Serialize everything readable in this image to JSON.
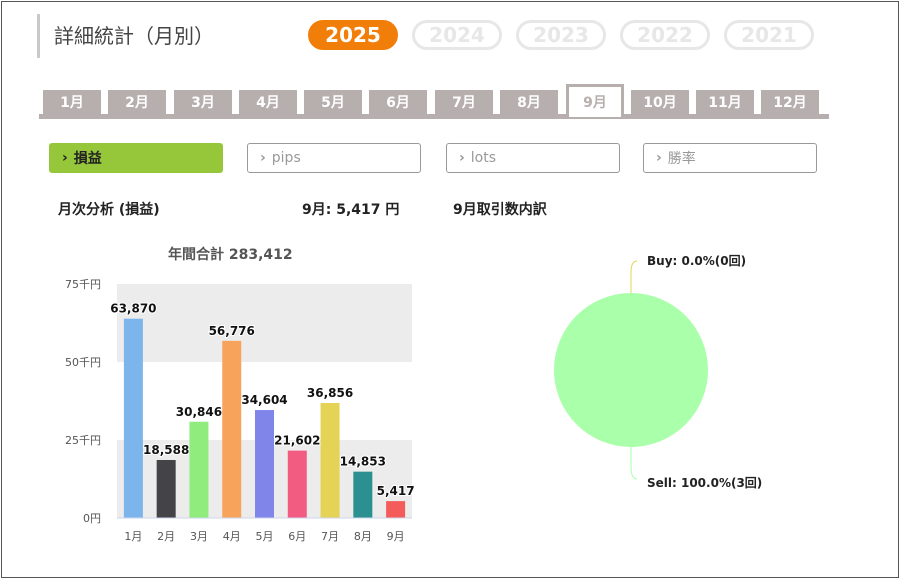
{
  "header": {
    "title": "詳細統計（月別）"
  },
  "years": [
    {
      "label": "2025",
      "active": true
    },
    {
      "label": "2024",
      "active": false
    },
    {
      "label": "2023",
      "active": false
    },
    {
      "label": "2022",
      "active": false
    },
    {
      "label": "2021",
      "active": false
    }
  ],
  "months": [
    {
      "label": "1月",
      "active": false
    },
    {
      "label": "2月",
      "active": false
    },
    {
      "label": "3月",
      "active": false
    },
    {
      "label": "4月",
      "active": false
    },
    {
      "label": "5月",
      "active": false
    },
    {
      "label": "6月",
      "active": false
    },
    {
      "label": "7月",
      "active": false
    },
    {
      "label": "8月",
      "active": false
    },
    {
      "label": "9月",
      "active": true
    },
    {
      "label": "10月",
      "active": false
    },
    {
      "label": "11月",
      "active": false
    },
    {
      "label": "12月",
      "active": false
    }
  ],
  "filters": [
    {
      "label": "損益",
      "active": true
    },
    {
      "label": "pips",
      "active": false
    },
    {
      "label": "lots",
      "active": false
    },
    {
      "label": "勝率",
      "active": false
    }
  ],
  "stats": {
    "monthly_title": "月次分析 (損益)",
    "month_value": "9月:  5,417 円",
    "breakdown_title": "9月取引数内訳"
  },
  "chart_data": [
    {
      "type": "bar",
      "title": "年間合計 283,412",
      "categories": [
        "1月",
        "2月",
        "3月",
        "4月",
        "5月",
        "6月",
        "7月",
        "8月",
        "9月"
      ],
      "values": [
        63870,
        18588,
        30846,
        56776,
        34604,
        21602,
        36856,
        14853,
        5417
      ],
      "value_labels": [
        "63,870",
        "18,588",
        "30,846",
        "56,776",
        "34,604",
        "21,602",
        "36,856",
        "14,853",
        "5,417"
      ],
      "colors": [
        "#7cb5ec",
        "#434348",
        "#90ed7d",
        "#f7a35c",
        "#8085e9",
        "#f15c80",
        "#e4d354",
        "#2b908f",
        "#f45b5b"
      ],
      "ylim": [
        0,
        75000
      ],
      "yticks": [
        "0円",
        "25千円",
        "50千円",
        "75千円"
      ],
      "bands": "alternating grey"
    },
    {
      "type": "pie",
      "slices": [
        {
          "name": "Buy",
          "percent": 0.0,
          "count": 0,
          "label": "Buy: 0.0%(0回)",
          "color": "#e4d354"
        },
        {
          "name": "Sell",
          "percent": 100.0,
          "count": 3,
          "label": "Sell: 100.0%(3回)",
          "color": "#aaffaa"
        }
      ]
    }
  ]
}
